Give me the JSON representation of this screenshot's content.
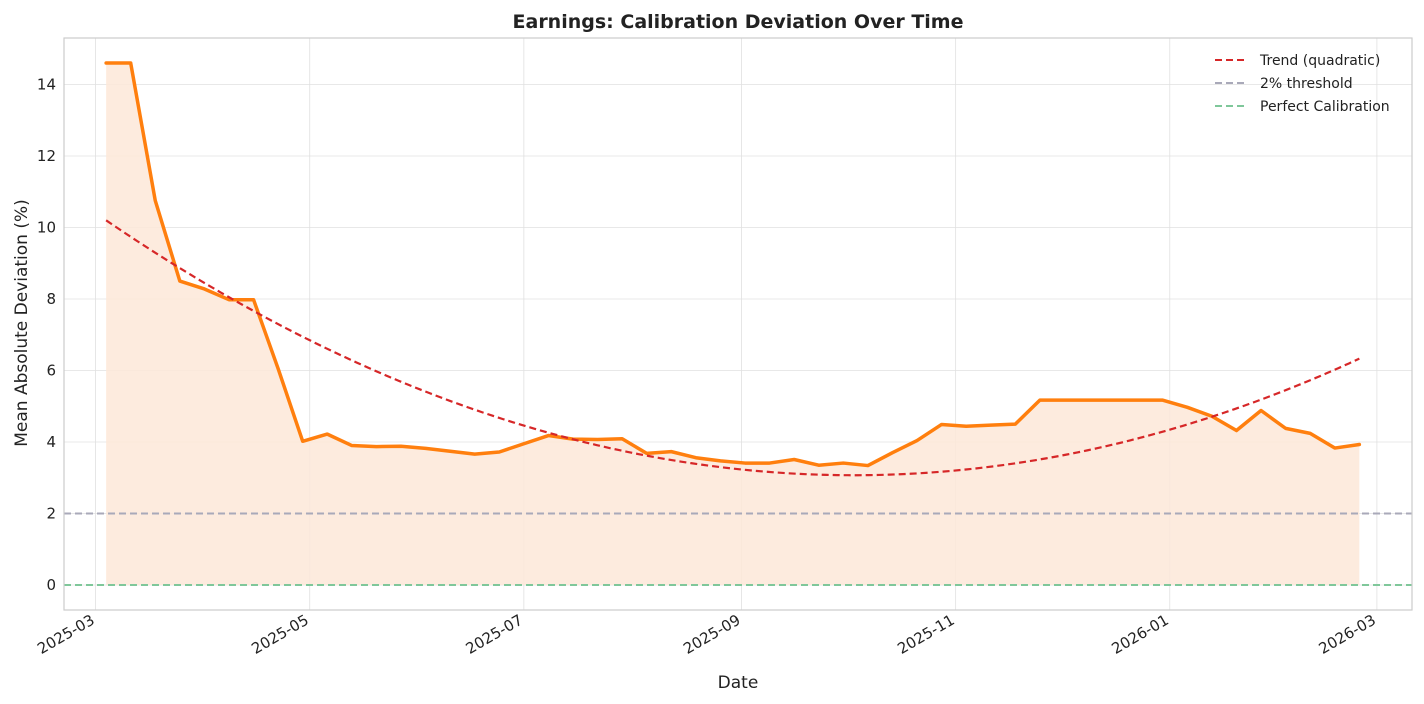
{
  "chart_data": {
    "type": "line",
    "title": "Earnings: Calibration Deviation Over Time",
    "xlabel": "Date",
    "ylabel": "Mean Absolute Deviation (%)",
    "ylim": [
      -0.7,
      15.3
    ],
    "xlim": [
      "2025-02-20",
      "2026-03-11"
    ],
    "yticks": [
      0,
      2,
      4,
      6,
      8,
      10,
      12,
      14
    ],
    "xticks": [
      {
        "date": "2025-03-01",
        "label": "2025-03"
      },
      {
        "date": "2025-05-01",
        "label": "2025-05"
      },
      {
        "date": "2025-07-01",
        "label": "2025-07"
      },
      {
        "date": "2025-09-01",
        "label": "2025-09"
      },
      {
        "date": "2025-11-01",
        "label": "2025-11"
      },
      {
        "date": "2026-01-01",
        "label": "2026-01"
      },
      {
        "date": "2026-03-01",
        "label": "2026-03"
      }
    ],
    "grid": true,
    "legend_position": "top-right",
    "colors": {
      "series": "#ff7f0e",
      "fill": "#fde8d8",
      "trend": "#d62728",
      "threshold": "#a9a9b9",
      "perfect": "#7fc79a",
      "grid": "#e0e0e0",
      "spine": "#cccccc"
    },
    "series": [
      {
        "name": "Mean Absolute Deviation",
        "x": [
          "2025-03-04",
          "2025-03-11",
          "2025-03-18",
          "2025-03-25",
          "2025-04-01",
          "2025-04-08",
          "2025-04-15",
          "2025-04-22",
          "2025-04-29",
          "2025-05-06",
          "2025-05-13",
          "2025-05-20",
          "2025-05-27",
          "2025-06-03",
          "2025-06-10",
          "2025-06-17",
          "2025-06-24",
          "2025-07-01",
          "2025-07-08",
          "2025-07-15",
          "2025-07-22",
          "2025-07-29",
          "2025-08-05",
          "2025-08-12",
          "2025-08-19",
          "2025-08-26",
          "2025-09-02",
          "2025-09-09",
          "2025-09-16",
          "2025-09-23",
          "2025-09-30",
          "2025-10-07",
          "2025-10-14",
          "2025-10-21",
          "2025-10-28",
          "2025-11-04",
          "2025-11-11",
          "2025-11-18",
          "2025-11-25",
          "2025-12-02",
          "2025-12-09",
          "2025-12-16",
          "2025-12-23",
          "2025-12-30",
          "2026-01-06",
          "2026-01-13",
          "2026-01-20",
          "2026-01-27",
          "2026-02-03",
          "2026-02-10",
          "2026-02-17",
          "2026-02-24"
        ],
        "values": [
          14.6,
          14.6,
          10.75,
          8.5,
          8.28,
          7.98,
          7.98,
          6.05,
          4.02,
          4.22,
          3.9,
          3.87,
          3.88,
          3.82,
          3.74,
          3.66,
          3.72,
          3.95,
          4.18,
          4.08,
          4.07,
          4.09,
          3.68,
          3.73,
          3.56,
          3.47,
          3.41,
          3.41,
          3.51,
          3.35,
          3.41,
          3.34,
          3.7,
          4.04,
          4.49,
          4.44,
          4.47,
          4.5,
          5.17,
          5.17,
          5.17,
          5.17,
          5.17,
          5.17,
          4.97,
          4.72,
          4.32,
          4.88,
          4.38,
          4.24,
          3.83,
          3.93
        ]
      },
      {
        "name": "Trend (quadratic)",
        "style": "dashed",
        "x": [
          "2025-03-04",
          "2025-10-02",
          "2026-02-24"
        ],
        "values": [
          10.2,
          3.07,
          6.33
        ]
      },
      {
        "name": "2% threshold",
        "style": "dashed",
        "hline": 2
      },
      {
        "name": "Perfect Calibration",
        "style": "dashed",
        "hline": 0
      }
    ]
  }
}
